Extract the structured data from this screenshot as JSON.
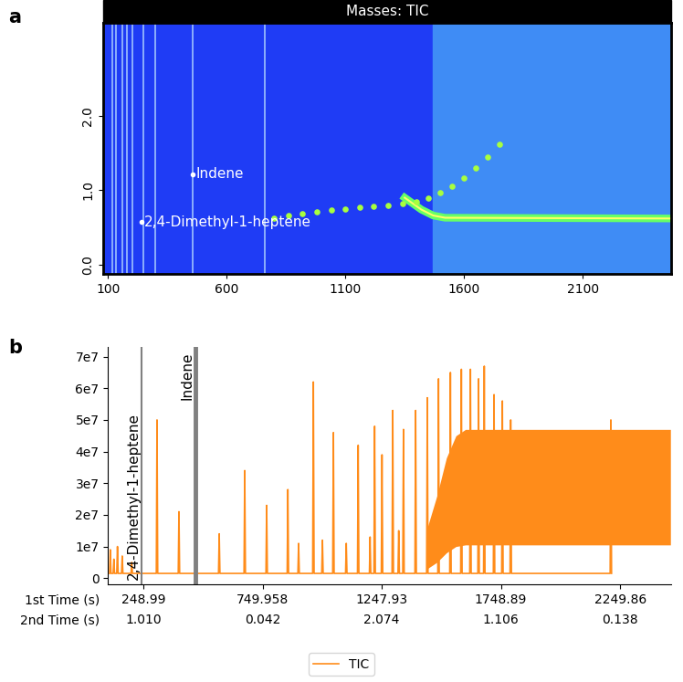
{
  "chart_data": [
    {
      "type": "scatter",
      "panel_label": "a",
      "title": "Masses: TIC",
      "x": [
        800,
        860,
        920,
        980,
        1040,
        1100,
        1160,
        1220,
        1280,
        1340,
        1400,
        1450,
        1500,
        1550,
        1600,
        1650,
        1700,
        1750
      ],
      "values": [
        0.62,
        0.66,
        0.69,
        0.71,
        0.73,
        0.75,
        0.77,
        0.78,
        0.8,
        0.82,
        0.85,
        0.9,
        0.97,
        1.06,
        1.17,
        1.3,
        1.45,
        1.62
      ],
      "color": "#a8ff3e",
      "annotations": [
        {
          "text": "2,4-Dimethyl-1-heptene",
          "x": 242,
          "y": 0.57
        },
        {
          "text": "Indene",
          "x": 458,
          "y": 1.22
        }
      ],
      "streaks": [
        120,
        135,
        160,
        182,
        205,
        250,
        300,
        458,
        760
      ],
      "bleed": {
        "x": [
          1350,
          1420,
          1470,
          1520,
          2473
        ],
        "values": [
          0.9,
          0.74,
          0.66,
          0.63,
          0.62
        ],
        "color": "#66ff66"
      },
      "bleed_region": [
        1470,
        2473
      ],
      "xlim": [
        80,
        2473
      ],
      "ylim": [
        -0.13,
        3.26
      ],
      "xticks": [
        100,
        600,
        1100,
        1600,
        2100
      ],
      "yticks": [
        {
          "value": 0,
          "label": "0.0"
        },
        {
          "value": 1,
          "label": "1.0"
        },
        {
          "value": 2,
          "label": "2.0"
        }
      ]
    },
    {
      "type": "line",
      "panel_label": "b",
      "xlabel": "1st Time (s)",
      "x2label": "2nd Time (s)",
      "x2_labels": [
        "1.010",
        "0.042",
        "2.074",
        "1.106",
        "0.138"
      ],
      "series": [
        {
          "name": "TIC",
          "color": "#ff8c1a",
          "x": [
            110,
            125,
            140,
            160,
            200,
            306,
            398,
            567,
            674,
            766,
            855,
            900,
            962,
            1000,
            1046,
            1100,
            1150,
            1200,
            1219,
            1250,
            1295,
            1320,
            1340,
            1391,
            1440,
            1487,
            1537,
            1583,
            1621,
            1655,
            1679,
            1720,
            1755,
            1790,
            2210
          ],
          "values": [
            9000000,
            6000000,
            10000000,
            7000000,
            5000000,
            50000000,
            21000000,
            14000000,
            34000000,
            23000000,
            28000000,
            11000000,
            62000000,
            12000000,
            46000000,
            11000000,
            42000000,
            13000000,
            48000000,
            39000000,
            53000000,
            15000000,
            47000000,
            53000000,
            57000000,
            63000000,
            65000000,
            66000000,
            66000000,
            63000000,
            67000000,
            58000000,
            56000000,
            50000000,
            50000000
          ]
        }
      ],
      "baseline": 1500000,
      "band": {
        "x": [
          1440,
          1480,
          1520,
          1560,
          1600,
          2460
        ],
        "low": [
          3000000,
          5000000,
          8000000,
          10000000,
          10500000,
          10500000
        ],
        "high": [
          16000000,
          26000000,
          38000000,
          45000000,
          47000000,
          47000000
        ]
      },
      "markers": [
        {
          "label": "2,4-Dimethyl-1-heptene",
          "x": 242
        },
        {
          "label": "Indene",
          "x": 466
        }
      ],
      "xlim": [
        100,
        2464
      ],
      "ylim": [
        -2000000,
        73000000
      ],
      "xticks": [
        248.99,
        749.958,
        1247.93,
        1748.89,
        2249.86
      ],
      "yticks": [
        0,
        {
          "value": 10000000,
          "label": "1e7"
        },
        {
          "value": 20000000,
          "label": "2e7"
        },
        {
          "value": 30000000,
          "label": "3e7"
        },
        {
          "value": 40000000,
          "label": "4e7"
        },
        {
          "value": 50000000,
          "label": "5e7"
        },
        {
          "value": 60000000,
          "label": "6e7"
        },
        {
          "value": 70000000,
          "label": "7e7"
        }
      ],
      "legend": "lower center"
    }
  ]
}
